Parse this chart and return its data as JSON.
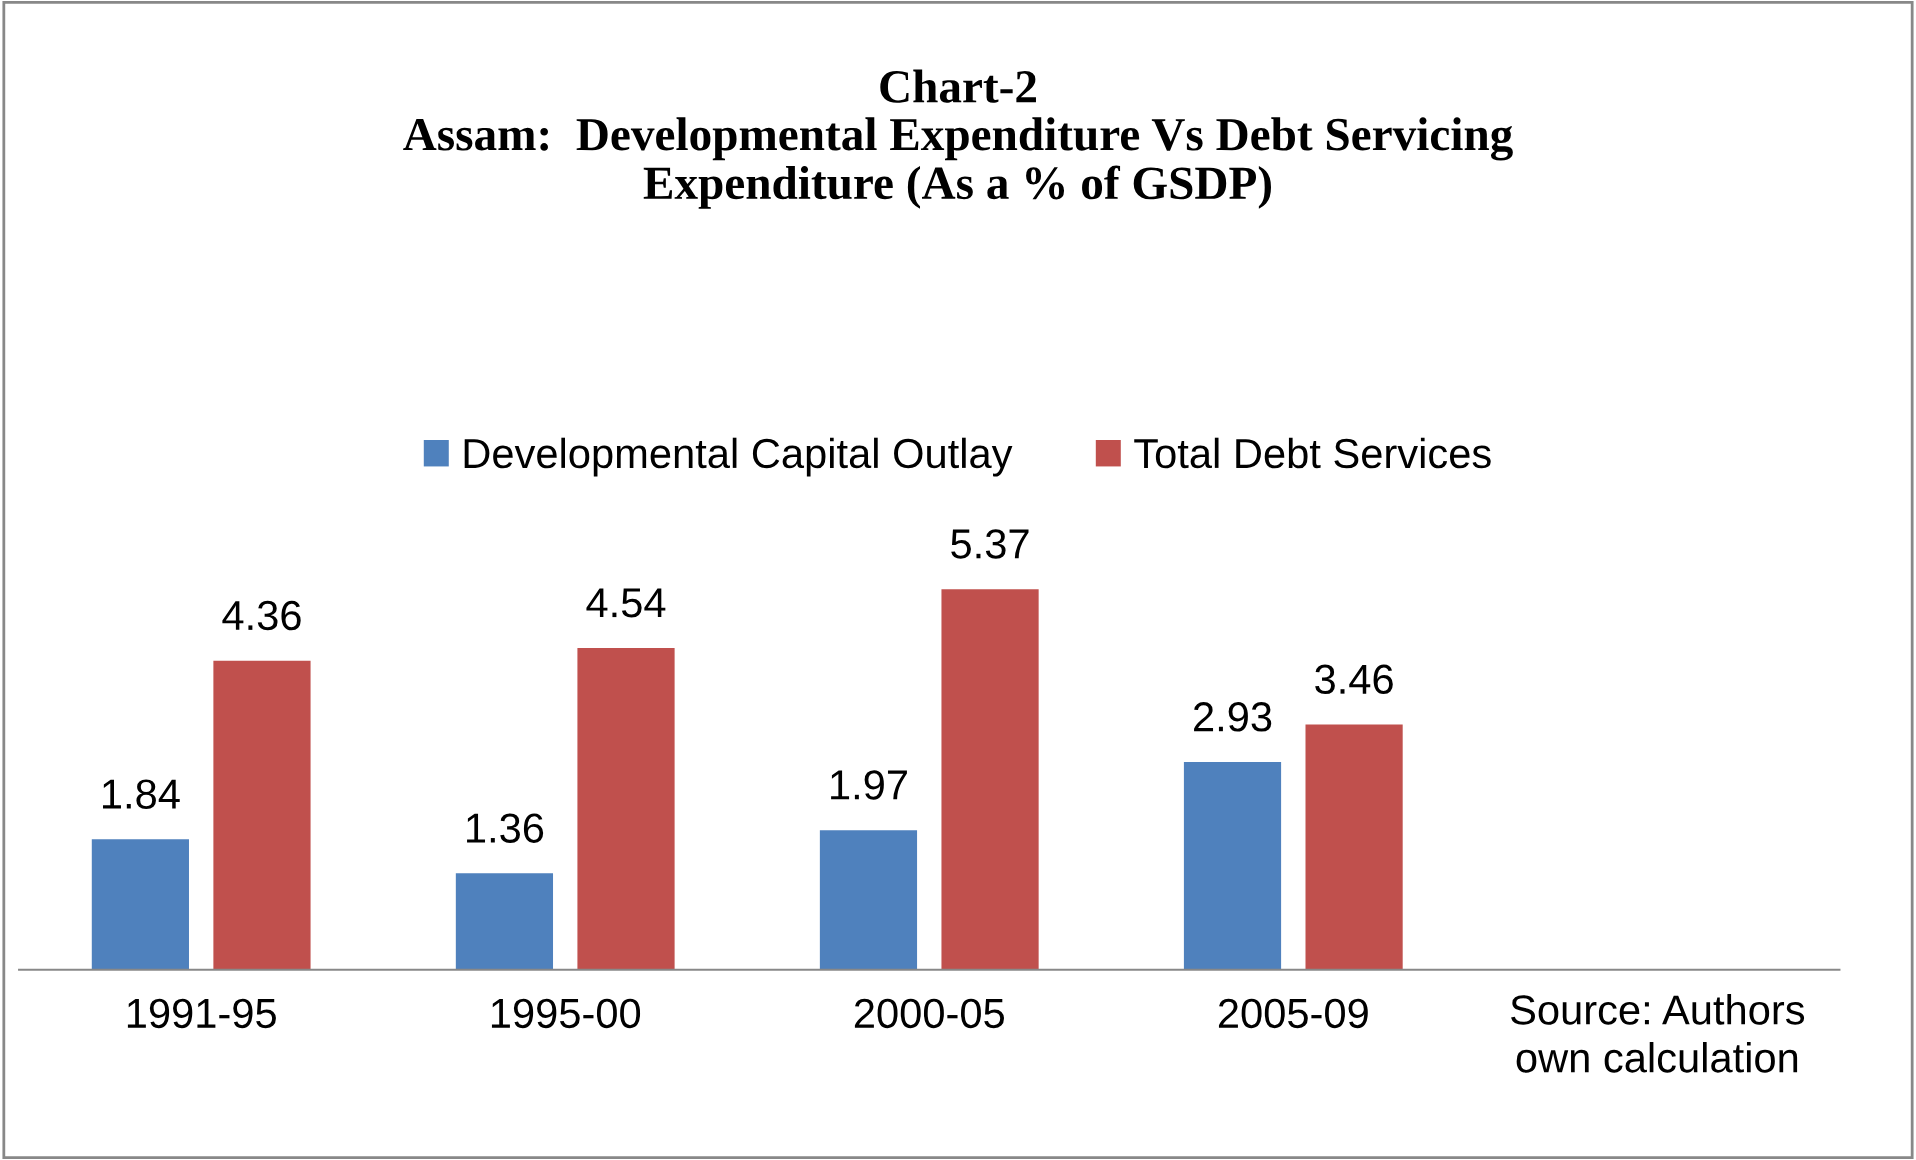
{
  "chart_data": {
    "type": "bar",
    "title": "Chart-2\nAssam:  Developmental Expenditure Vs Debt Servicing\nExpenditure (As a % of GSDP)",
    "categories": [
      "1991-95",
      "1995-00",
      "2000-05",
      "2005-09"
    ],
    "series": [
      {
        "name": "Developmental Capital Outlay",
        "color": "#4f81bd",
        "values": [
          1.84,
          1.36,
          1.97,
          2.93
        ]
      },
      {
        "name": "Total Debt Services",
        "color": "#c0504d",
        "values": [
          4.36,
          4.54,
          5.37,
          3.46
        ]
      }
    ],
    "data_labels": true,
    "legend": "top",
    "grid": false,
    "annotations": [
      "Source: Authors\nown calculation"
    ]
  }
}
